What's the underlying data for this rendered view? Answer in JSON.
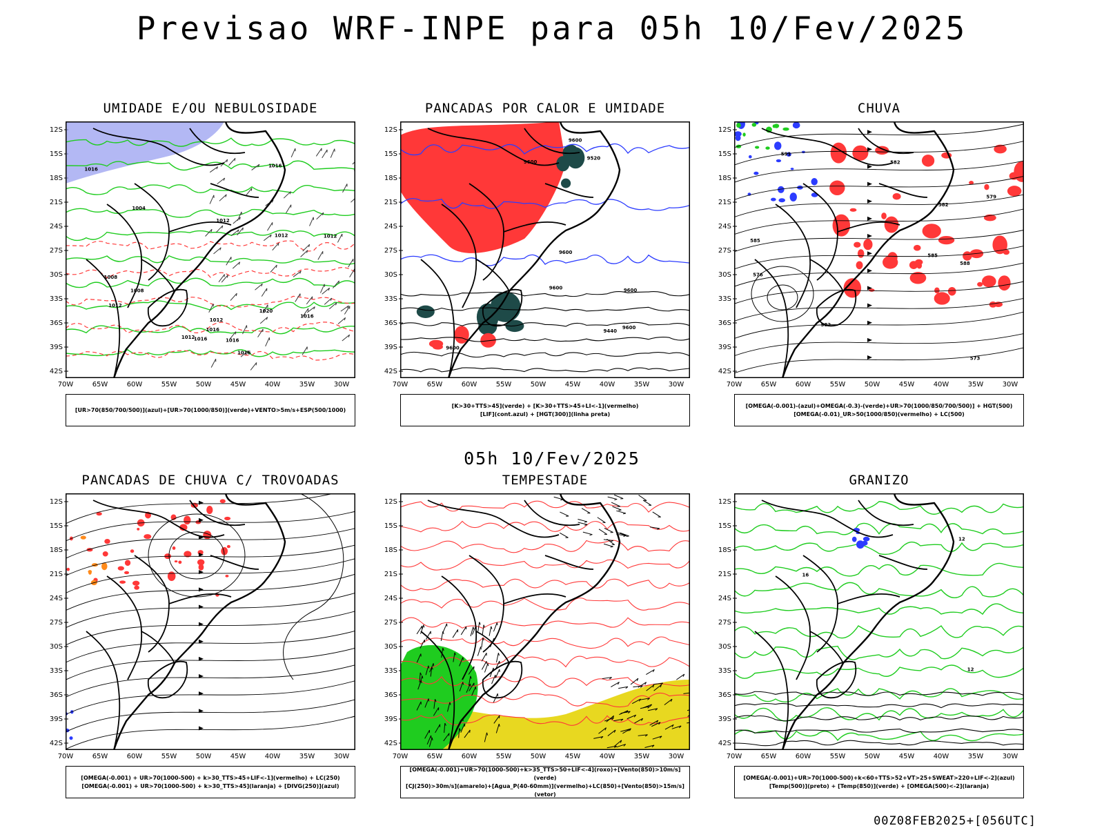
{
  "header": {
    "title": "Previsao WRF-INPE  para 05h 10/Fev/2025"
  },
  "mid": {
    "title": "05h 10/Fev/2025"
  },
  "footer": {
    "text": "00Z08FEB2025+[056UTC]"
  },
  "axes": {
    "lat_labels": [
      "12S",
      "15S",
      "18S",
      "21S",
      "24S",
      "27S",
      "30S",
      "33S",
      "36S",
      "39S",
      "42S"
    ],
    "lon_labels": [
      "70W",
      "65W",
      "60W",
      "55W",
      "50W",
      "45W",
      "40W",
      "35W",
      "30W"
    ]
  },
  "colors": {
    "blue": "#2c3cff",
    "green": "#1fcc1f",
    "red": "#ff3838",
    "teal": "#1e4a48",
    "yellow": "#e8d820",
    "orange": "#ff8a1a",
    "lavender": "#9aa0f0"
  },
  "panels": [
    {
      "title": "UMIDADE E/OU NEBULOSIDADE",
      "legend": [
        "[UR>70(850/700/500)](azul)+[UR>70(1000/850)](verde)+VENTO>5m/s+ESP(500/1000)"
      ]
    },
    {
      "title": "PANCADAS POR CALOR E UMIDADE",
      "legend": [
        "[K>30+TTS>45](verde) + [K>30+TTS>45+LI<-1](vermelho)",
        "[LIF](cont.azul) + [HGT(300)](linha preta)"
      ]
    },
    {
      "title": "CHUVA",
      "legend": [
        "[OMEGA(-0.001)-(azul)+OMEGA(-0.3)-(verde)+UR>70(1000/850/700/500)] + HGT(500)",
        "[OMEGA(-0.01)_UR>50(1000/850)(vermelho) + LC(500)"
      ]
    },
    {
      "title": "PANCADAS DE CHUVA C/ TROVOADAS",
      "legend": [
        "[OMEGA(-0.001) + UR>70(1000-500) + k>30_TTS>45+LIF<-1](vermelho) + LC(250)",
        "[OMEGA(-0.001) + UR>70(1000-500) + k>30_TTS>45](laranja) + [DIVG(250)](azul)"
      ]
    },
    {
      "title": "TEMPESTADE",
      "legend": [
        "[OMEGA(-0.001)+UR>70(1000-500)+k>35_TTS>50+LIF<-4](roxo)+[Vento(850)>10m/s](verde)",
        "[CJ(250)>30m/s](amarelo)+[Agua_P(40-60mm)](vermelho)+LC(850)+[Vento(850)>15m/s](vetor)"
      ]
    },
    {
      "title": "GRANIZO",
      "legend": [
        "[OMEGA(-0.001)+UR>70(1000-500)+k<60+TTS>52+VT>25+SWEAT>220+LIF<-2](azul)",
        "[Temp(500)](preto) + [Temp(850)](verde) + [OMEGA(500)<-2](laranja)"
      ]
    }
  ],
  "contour_labels": {
    "p1": [
      "1012",
      "1012",
      "1012",
      "1016",
      "1012",
      "1012",
      "1016",
      "1008",
      "1012",
      "1004",
      "1008",
      "1016",
      "1016",
      "1016",
      "1016",
      "1016",
      "1020"
    ],
    "p2": [
      "9600",
      "9600",
      "9600",
      "9600",
      "9600",
      "9600",
      "9600",
      "9520",
      "9440"
    ],
    "p3": [
      "582",
      "582",
      "585",
      "585",
      "582",
      "579",
      "576",
      "573",
      "588",
      "591"
    ],
    "p6": [
      "12",
      "12",
      "16"
    ]
  }
}
